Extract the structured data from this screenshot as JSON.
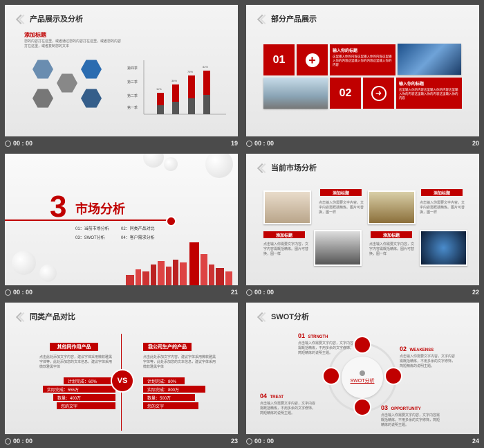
{
  "slides": {
    "s19": {
      "title": "产品展示及分析",
      "heading": "添加标题",
      "desc": "您的内容打在这里，或者通过您的内容打在这里，或者您的内容打在这里，或者复制您的文本",
      "page": "19",
      "time": "00 : 00",
      "chart": {
        "labels": [
          "第四季",
          "第三季",
          "第二季",
          "第一季"
        ]
      }
    },
    "s20": {
      "title": "部分产品展示",
      "box1": "01",
      "box2": "02",
      "t1": "输入你的标题",
      "d1": "这里输入你的内容这里输入你的内容这里输入你的内容这里输入你的内容这里输入你的内容",
      "t2": "输入你的标题",
      "d2": "这里输入你的内容这里输入你的内容这里输入你的内容这里输入你的内容这里输入你的内容",
      "page": "20",
      "time": "00 : 00"
    },
    "s21": {
      "num": "3",
      "title": "市场分析",
      "items": [
        "01：当前市场分析",
        "02：同类产品对比",
        "03：SWOT分析",
        "04：客户需求分析"
      ],
      "page": "21",
      "time": "00 : 00"
    },
    "s22": {
      "title": "当前市场分析",
      "tag": "添加标题",
      "text": "点击输入你需要文字内容，文字内容需概括精炼。图片可替换，图一样",
      "page": "22",
      "time": "00 : 00"
    },
    "s23": {
      "title": "同类产品对比",
      "left_head": "其他同作用产品",
      "right_head": "我公司生产的产品",
      "left_text": "点击此处添加文字内容，建议字体采用微软雅黑字体等，此处添加您的文本信息，建议字体采用微软雅黑字体",
      "right_text": "点击此处添加文字内容，建议字体采用微软雅黑字体等，此处添加您的文本信息，建议字体采用微软雅黑字体",
      "vs": "VS",
      "left_bars": [
        "计划完成：60%",
        "实际完成：555万",
        "数量：400万",
        "您的文字"
      ],
      "right_bars": [
        "计划完成：80%",
        "实际完成：800万",
        "数量：500万",
        "您的文字"
      ],
      "page": "23",
      "time": "00 : 00"
    },
    "s24": {
      "title": "SWOT分析",
      "center": "SWOT分析",
      "s_num": "01",
      "s_label": "STRNGTH",
      "w_num": "02",
      "w_label": "WEAKENSS",
      "o_num": "03",
      "o_label": "OPPORTUNITY",
      "t_num": "04",
      "t_label": "TREAT",
      "text": "点击输入你需要文字内容，文字内容需概括精炼，不用多余的文字修饰，简短精炼的说明主题。",
      "page": "24",
      "time": "00 : 00"
    }
  }
}
